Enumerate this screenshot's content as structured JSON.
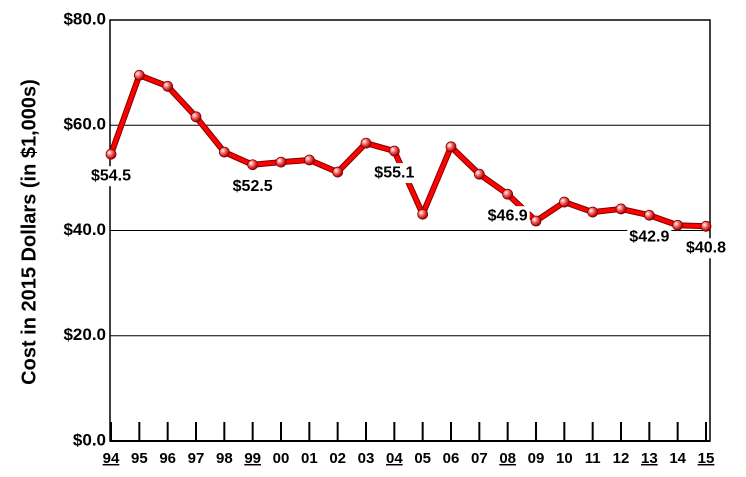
{
  "chart_data": {
    "type": "line",
    "y_label": "Cost in 2015 Dollars (in $1,000s)",
    "categories": [
      "94",
      "95",
      "96",
      "97",
      "98",
      "99",
      "00",
      "01",
      "02",
      "03",
      "04",
      "05",
      "06",
      "07",
      "08",
      "09",
      "10",
      "11",
      "12",
      "13",
      "14",
      "15"
    ],
    "underlined_categories": [
      0,
      5,
      10,
      14,
      19,
      21
    ],
    "series": [
      {
        "color": "#ff0000",
        "values": [
          54.5,
          69.5,
          67.4,
          61.6,
          54.9,
          52.5,
          53.0,
          53.4,
          51.1,
          56.6,
          55.1,
          43.1,
          55.9,
          50.7,
          46.9,
          41.8,
          45.4,
          43.5,
          44.1,
          42.9,
          41.0,
          40.8
        ],
        "value_labels": [
          "$54.5",
          null,
          null,
          null,
          null,
          "$52.5",
          null,
          null,
          null,
          null,
          "$55.1",
          null,
          null,
          null,
          "$46.9",
          null,
          null,
          null,
          null,
          "$42.9",
          null,
          "$40.8"
        ]
      }
    ],
    "ylim": [
      0,
      80
    ],
    "yticks": [
      {
        "value": 0,
        "label": "$0.0"
      },
      {
        "value": 20,
        "label": "$20.0"
      },
      {
        "value": 40,
        "label": "$40.0"
      },
      {
        "value": 60,
        "label": "$60.0"
      },
      {
        "value": 80,
        "label": "$80.0"
      }
    ],
    "grid": true
  }
}
